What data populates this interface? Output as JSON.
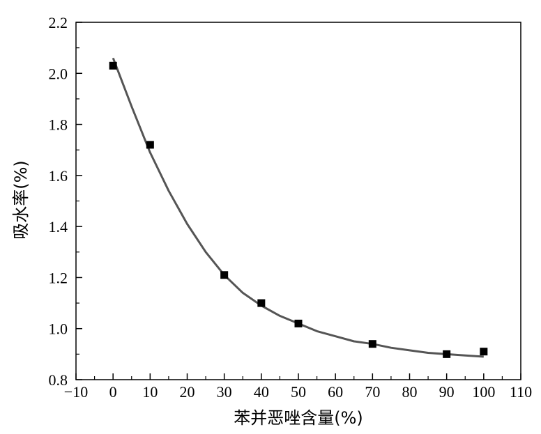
{
  "chart_data": {
    "type": "scatter",
    "title": "",
    "xlabel": "苯并恶唑含量(%)",
    "ylabel": "吸水率(%)",
    "xlim": [
      -10,
      110
    ],
    "ylim": [
      0.8,
      2.2
    ],
    "x_ticks": [
      -10,
      0,
      10,
      20,
      30,
      40,
      50,
      60,
      70,
      80,
      90,
      100,
      110
    ],
    "x_tick_labels": [
      "−10",
      "0",
      "10",
      "20",
      "30",
      "40",
      "50",
      "60",
      "70",
      "80",
      "90",
      "100",
      "110"
    ],
    "y_ticks": [
      0.8,
      1.0,
      1.2,
      1.4,
      1.6,
      1.8,
      2.0,
      2.2
    ],
    "y_tick_labels": [
      "0.8",
      "1.0",
      "1.2",
      "1.4",
      "1.6",
      "1.8",
      "2.0",
      "2.2"
    ],
    "grid": false,
    "legend": "none",
    "series": [
      {
        "kind": "points",
        "marker": "square",
        "x": [
          0,
          10,
          30,
          40,
          50,
          70,
          90,
          100
        ],
        "y": [
          2.03,
          1.72,
          1.21,
          1.1,
          1.02,
          0.94,
          0.9,
          0.91
        ]
      },
      {
        "kind": "fit-line",
        "x": [
          0,
          5,
          10,
          15,
          20,
          25,
          30,
          35,
          40,
          45,
          50,
          55,
          60,
          65,
          70,
          75,
          80,
          85,
          90,
          95,
          100
        ],
        "y": [
          2.06,
          1.87,
          1.69,
          1.54,
          1.41,
          1.3,
          1.21,
          1.14,
          1.09,
          1.05,
          1.02,
          0.99,
          0.97,
          0.95,
          0.94,
          0.925,
          0.915,
          0.905,
          0.9,
          0.895,
          0.89
        ]
      }
    ],
    "colors": {
      "points": "#000000",
      "line": "#555555",
      "axes": "#000000"
    }
  }
}
